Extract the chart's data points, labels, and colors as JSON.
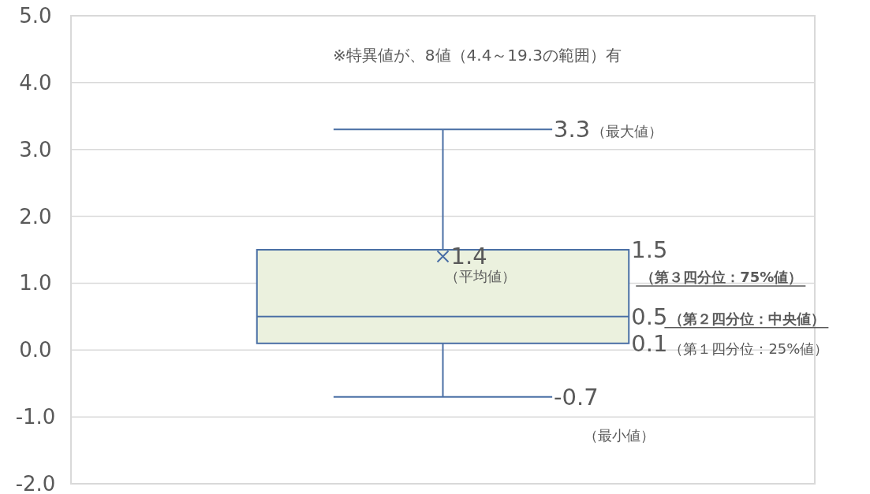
{
  "chart_data": {
    "type": "box",
    "categories": [
      null
    ],
    "boxes": [
      {
        "low": -0.7,
        "q1": 0.1,
        "median": 0.5,
        "q3": 1.5,
        "high": 3.3,
        "mean": 1.4
      }
    ],
    "color": "#4a6fa5",
    "ylim": [
      -2,
      5
    ],
    "yticks": [
      {
        "value": -2,
        "label": "-2.0"
      },
      {
        "value": -1,
        "label": "-1.0"
      },
      {
        "value": 0,
        "label": "0.0"
      },
      {
        "value": 1,
        "label": "1.0"
      },
      {
        "value": 2,
        "label": "2.0"
      },
      {
        "value": 3,
        "label": "3.0"
      },
      {
        "value": 4,
        "label": "4.0"
      },
      {
        "value": 5,
        "label": "5.0"
      }
    ],
    "grid": "y",
    "annotations": [
      "※特異値が、8値（4.4～19.3の範囲）有",
      "3.3",
      "（最大値）",
      "1.4",
      "（平均値）",
      "1.5",
      "（第３四分位：75%値）",
      "0.5",
      "（第２四分位：中央値）",
      "0.1",
      "（第１四分位：25%値）",
      "-0.7",
      "（最小値）"
    ]
  }
}
